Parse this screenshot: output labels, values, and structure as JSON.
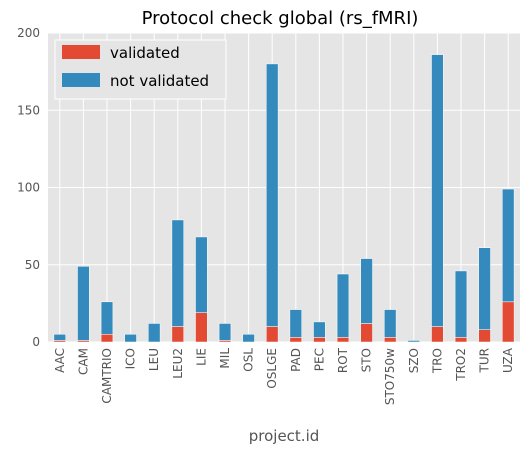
{
  "chart_data": {
    "type": "bar",
    "stacked": true,
    "title": "Protocol check global (rs_fMRI)",
    "xlabel": "project.id",
    "ylabel": "",
    "ylim": [
      0,
      200
    ],
    "yticks": [
      0,
      50,
      100,
      150,
      200
    ],
    "grid": true,
    "legend_position": "top-left",
    "categories": [
      "AAC",
      "CAM",
      "CAMTRIO",
      "ICO",
      "LEU",
      "LEU2",
      "LIE",
      "MIL",
      "OSL",
      "OSLGE",
      "PAD",
      "PEC",
      "ROT",
      "STO",
      "STO750w",
      "SZO",
      "TRO",
      "TRO2",
      "TUR",
      "UZA"
    ],
    "series": [
      {
        "name": "validated",
        "color": "#e24a33",
        "values": [
          1,
          1,
          5,
          0,
          0,
          10,
          19,
          1,
          0,
          10,
          3,
          3,
          3,
          12,
          3,
          0,
          10,
          3,
          8,
          26
        ]
      },
      {
        "name": "not validated",
        "color": "#348abd",
        "values": [
          4,
          48,
          21,
          5,
          12,
          69,
          49,
          11,
          5,
          170,
          18,
          10,
          41,
          42,
          18,
          1,
          176,
          43,
          53,
          73
        ]
      }
    ]
  }
}
